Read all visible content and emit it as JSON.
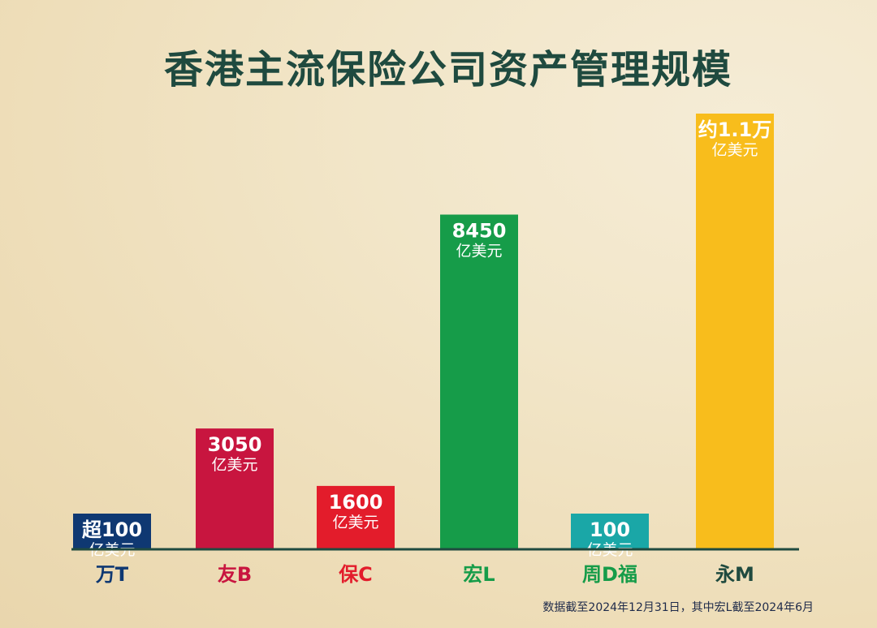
{
  "chart_data": {
    "type": "bar",
    "title": "香港主流保险公司资产管理规模",
    "categories": [
      "万T",
      "友B",
      "保C",
      "宏L",
      "周D福",
      "永M"
    ],
    "values": [
      100,
      3050,
      1600,
      8450,
      100,
      11000
    ],
    "value_labels": [
      "超100",
      "3050",
      "1600",
      "8450",
      "100",
      "约1.1万"
    ],
    "unit_label": "亿美元",
    "colors": [
      "#0f3872",
      "#c8153f",
      "#e31c2b",
      "#169c49",
      "#1aa7a7",
      "#f8bd1c"
    ],
    "label_colors": [
      "#0f3872",
      "#c8153f",
      "#e31c2b",
      "#169c49",
      "#169c49",
      "#1f4a3f"
    ],
    "axis_color": "#1f4a3f",
    "ylim": [
      0,
      11000
    ],
    "grid": false,
    "legend": "none",
    "footnote": "数据截至2024年12月31日，其中宏L截至2024年6月"
  }
}
